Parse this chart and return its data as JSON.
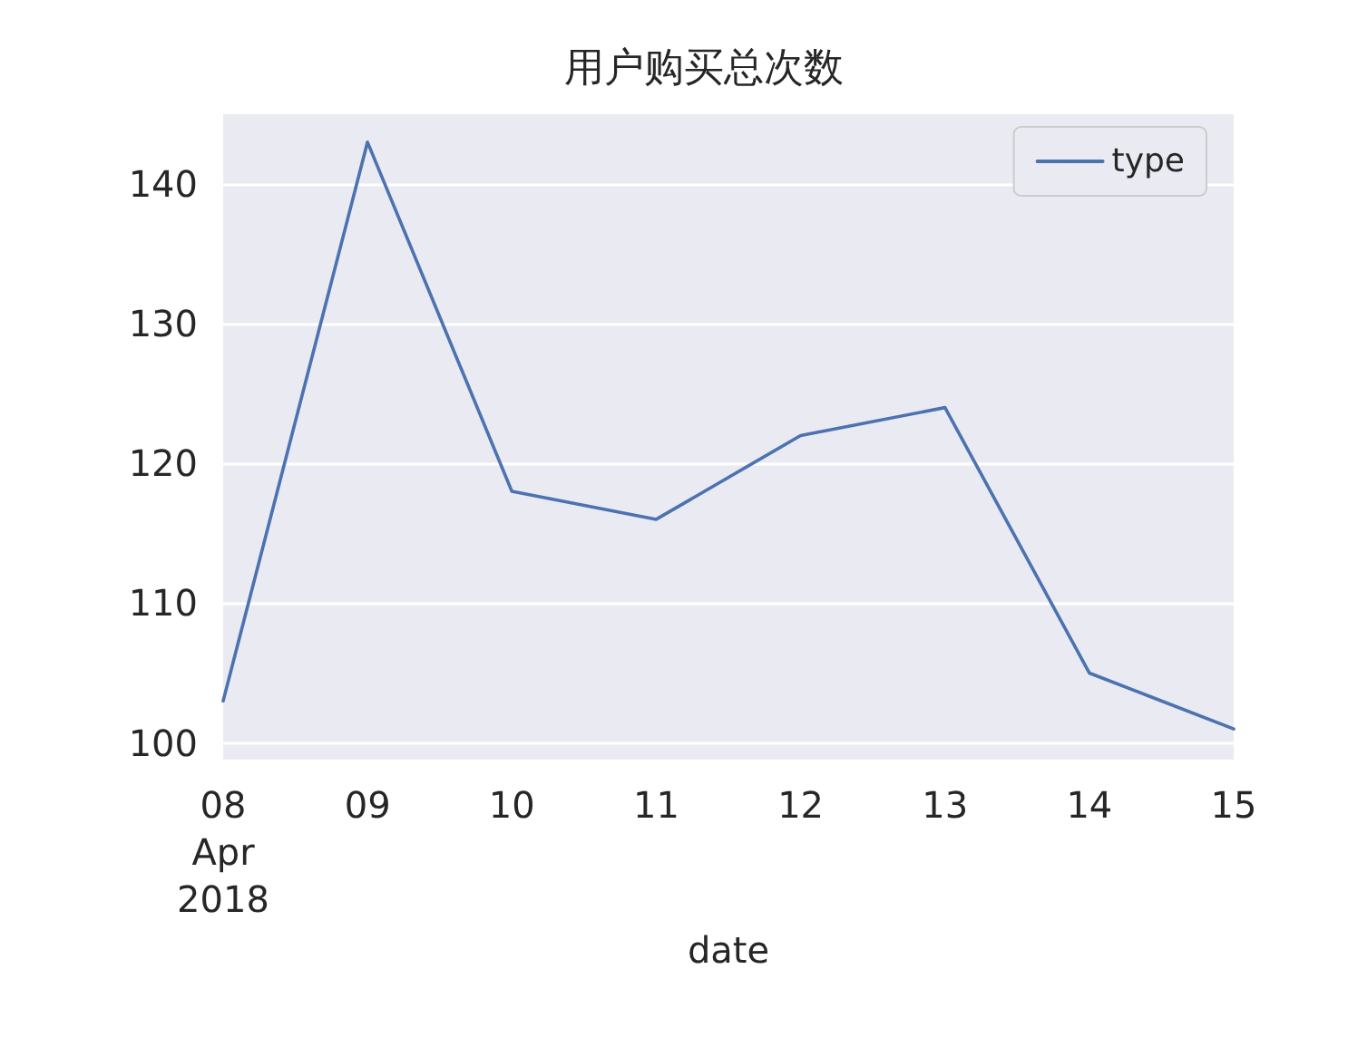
{
  "chart_data": {
    "type": "line",
    "title": "用户购买总次数",
    "xlabel": "date",
    "x": [
      "2018-04-08",
      "2018-04-09",
      "2018-04-10",
      "2018-04-11",
      "2018-04-12",
      "2018-04-13",
      "2018-04-14",
      "2018-04-15"
    ],
    "series": [
      {
        "name": "type",
        "color": "#4c72b0",
        "values": [
          103,
          143,
          118,
          116,
          122,
          124,
          105,
          101
        ]
      }
    ],
    "xlim": [
      "2018-04-08",
      "2018-04-15"
    ],
    "xticks": [
      {
        "value": "2018-04-08",
        "label": "08\nApr\n2018"
      },
      {
        "value": "2018-04-09",
        "label": "09"
      },
      {
        "value": "2018-04-10",
        "label": "10"
      },
      {
        "value": "2018-04-11",
        "label": "11"
      },
      {
        "value": "2018-04-12",
        "label": "12"
      },
      {
        "value": "2018-04-13",
        "label": "13"
      },
      {
        "value": "2018-04-14",
        "label": "14"
      },
      {
        "value": "2018-04-15",
        "label": "15"
      }
    ],
    "ylim": [
      98.8,
      145
    ],
    "yticks": [
      100,
      110,
      120,
      130,
      140
    ],
    "grid": "y",
    "legend": "top right",
    "line_style": "solid"
  }
}
